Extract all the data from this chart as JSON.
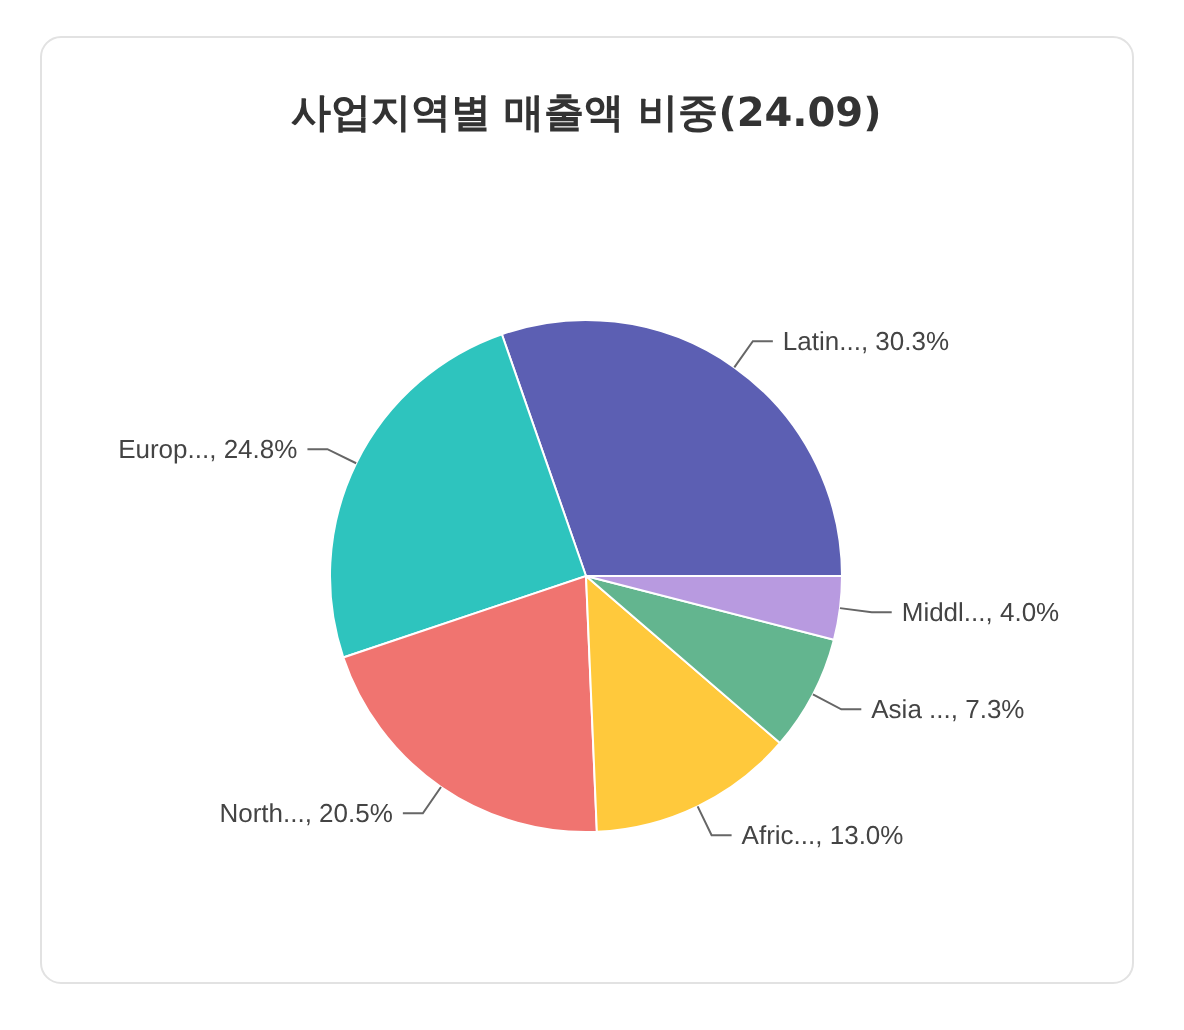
{
  "chart_data": {
    "type": "pie",
    "title": "사업지역별 매출액 비중(24.09)",
    "categories": [
      "Latin...",
      "Europ...",
      "North...",
      "Afric...",
      "Asia ...",
      "Middl..."
    ],
    "values": [
      30.3,
      24.8,
      20.5,
      13.0,
      7.3,
      4.0
    ],
    "value_labels": [
      "30.3%",
      "24.8%",
      "20.5%",
      "13.0%",
      "7.3%",
      "4.0%"
    ],
    "colors": [
      "#5c5fb3",
      "#2ec4be",
      "#f07470",
      "#ffc93c",
      "#63b58f",
      "#b89ae0"
    ]
  }
}
